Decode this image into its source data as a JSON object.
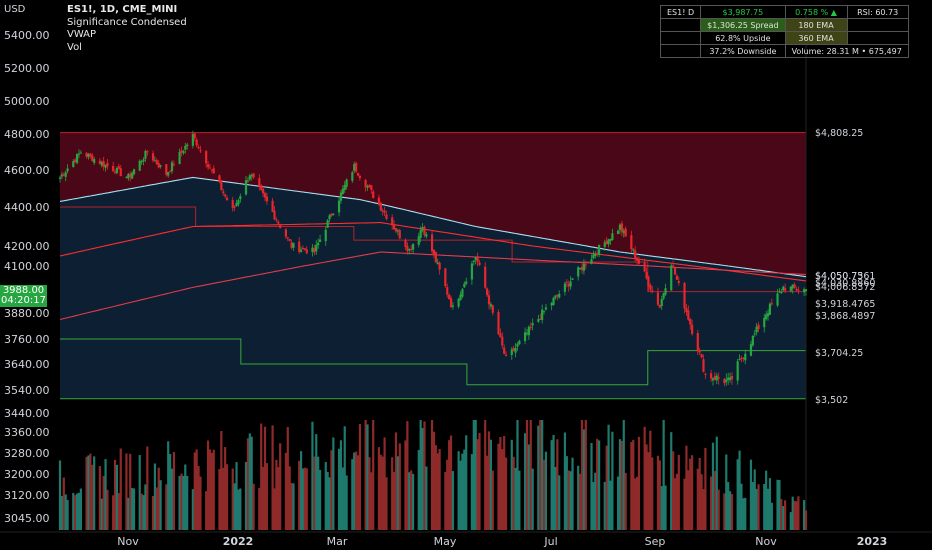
{
  "currency": "USD",
  "legend": {
    "symbol_line": "ES1!, 1D, CME_MINI",
    "indicator1": "Significance Condensed",
    "indicator2": "VWAP",
    "indicator3": "Vol"
  },
  "last_price": "3988.00",
  "countdown": "04:20:17",
  "stats_table": {
    "r1c1": "ES1! D",
    "r1c2": "$3,987.75",
    "r1c3": "0.758 % ▲",
    "r1c4": "RSI: 60.73",
    "r2c2": "$1,306.25 Spread",
    "r2c3": "180 EMA",
    "r3c2": "62.8% Upside",
    "r3c3": "360 EMA",
    "r4c2": "37.2% Downside",
    "r4c3": "Volume:  28.31 M  •  675,497"
  },
  "right_labels": [
    "$4,808.25",
    "$4,050.75",
    "$4,050.7361",
    "$4,030.8860",
    "$4,006.8372",
    "$3,918.4765",
    "$3,868.4897",
    "$3,704.25",
    "$3,502"
  ],
  "colors": {
    "up": "#26a641",
    "down": "#e8262b",
    "zone_top": "#4a0718",
    "zone_bottom": "#0c1f33",
    "vwap": "#a6e0f0",
    "ema_red": "#ff2d2d",
    "band_green": "#3aa83a"
  },
  "chart_data": {
    "type": "candlestick",
    "y_axis": {
      "ticks": [
        5400,
        5200,
        5000,
        4800,
        4600,
        4400,
        4200,
        4100,
        3880,
        3760,
        3640,
        3540,
        3440,
        3360,
        3280,
        3200,
        3120,
        3045
      ]
    },
    "x_axis": {
      "ticks": [
        "Nov",
        "2022",
        "Mar",
        "May",
        "Jul",
        "Sep",
        "Nov",
        "2023"
      ]
    },
    "price_anchors": [
      {
        "date": "2021-10-25",
        "close": 4560
      },
      {
        "date": "2021-11-05",
        "close": 4700
      },
      {
        "date": "2021-11-30",
        "close": 4560
      },
      {
        "date": "2021-12-10",
        "close": 4700
      },
      {
        "date": "2021-12-20",
        "close": 4580
      },
      {
        "date": "2022-01-03",
        "close": 4790
      },
      {
        "date": "2022-01-24",
        "close": 4380
      },
      {
        "date": "2022-02-02",
        "close": 4580
      },
      {
        "date": "2022-02-24",
        "close": 4200
      },
      {
        "date": "2022-03-08",
        "close": 4170
      },
      {
        "date": "2022-03-29",
        "close": 4620
      },
      {
        "date": "2022-04-12",
        "close": 4400
      },
      {
        "date": "2022-04-27",
        "close": 4180
      },
      {
        "date": "2022-05-04",
        "close": 4300
      },
      {
        "date": "2022-05-20",
        "close": 3900
      },
      {
        "date": "2022-06-01",
        "close": 4150
      },
      {
        "date": "2022-06-17",
        "close": 3660
      },
      {
        "date": "2022-07-08",
        "close": 3900
      },
      {
        "date": "2022-08-16",
        "close": 4300
      },
      {
        "date": "2022-09-06",
        "close": 3910
      },
      {
        "date": "2022-09-12",
        "close": 4120
      },
      {
        "date": "2022-09-30",
        "close": 3600
      },
      {
        "date": "2022-10-13",
        "close": 3570
      },
      {
        "date": "2022-11-01",
        "close": 3880
      },
      {
        "date": "2022-11-10",
        "close": 4000
      },
      {
        "date": "2022-11-22",
        "close": 3988
      }
    ],
    "vwap_anchors": [
      {
        "date": "2021-10-25",
        "value": 4430
      },
      {
        "date": "2022-01-03",
        "value": 4560
      },
      {
        "date": "2022-04-01",
        "value": 4440
      },
      {
        "date": "2022-06-01",
        "value": 4300
      },
      {
        "date": "2022-08-16",
        "value": 4170
      },
      {
        "date": "2022-11-22",
        "value": 4050
      }
    ],
    "ema180_anchors": [
      {
        "date": "2021-10-25",
        "value": 4150
      },
      {
        "date": "2022-01-03",
        "value": 4300
      },
      {
        "date": "2022-04-12",
        "value": 4320
      },
      {
        "date": "2022-07-01",
        "value": 4200
      },
      {
        "date": "2022-11-22",
        "value": 4030
      }
    ],
    "ema360_anchors": [
      {
        "date": "2021-10-25",
        "value": 3850
      },
      {
        "date": "2022-01-03",
        "value": 4000
      },
      {
        "date": "2022-04-12",
        "value": 4170
      },
      {
        "date": "2022-07-01",
        "value": 4130
      },
      {
        "date": "2022-11-22",
        "value": 4060
      }
    ],
    "upper_band": {
      "value": 4808.25
    },
    "lower_band": {
      "value": 3502
    },
    "levels": [
      3704.25,
      3868.4897,
      3918.4765
    ],
    "volume_anchors_m": [
      {
        "date": "2021-10-25",
        "value": 1.6
      },
      {
        "date": "2022-01-03",
        "value": 2.2
      },
      {
        "date": "2022-03-08",
        "value": 2.6
      },
      {
        "date": "2022-06-17",
        "value": 3.0
      },
      {
        "date": "2022-09-30",
        "value": 2.4
      },
      {
        "date": "2022-11-22",
        "value": 0.7
      }
    ]
  }
}
